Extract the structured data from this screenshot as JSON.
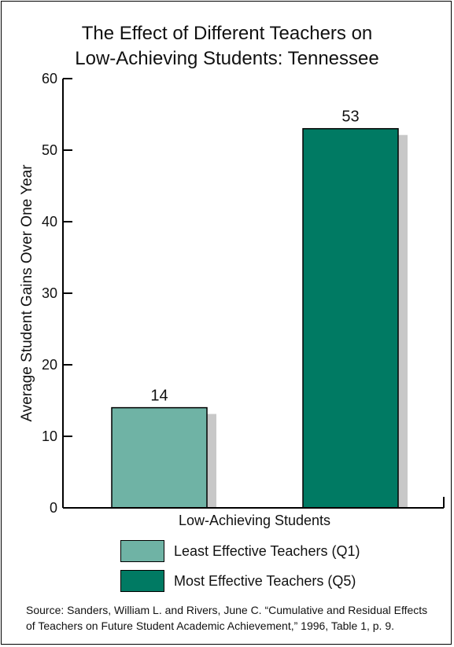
{
  "title_line1": "The Effect of Different Teachers on",
  "title_line2": "Low-Achieving Students: Tennessee",
  "colors": {
    "q1": "#6fb3a5",
    "q5": "#007a63",
    "shadow": "#c8c8c8",
    "axis": "#000000"
  },
  "legend": [
    {
      "label": "Least Effective Teachers (Q1)",
      "color": "#6fb3a5"
    },
    {
      "label": "Most Effective Teachers (Q5)",
      "color": "#007a63"
    }
  ],
  "source_line1": "Source: Sanders, William L. and Rivers, June C. “Cumulative and Residual Effects",
  "source_line2": "of Teachers on Future Student Academic Achievement,” 1996, Table 1, p. 9.",
  "chart_data": {
    "type": "bar",
    "title": "The Effect of Different Teachers on Low-Achieving Students: Tennessee",
    "categories": [
      "Low-Achieving Students"
    ],
    "series": [
      {
        "name": "Least Effective Teachers (Q1)",
        "values": [
          14
        ]
      },
      {
        "name": "Most Effective Teachers (Q5)",
        "values": [
          53
        ]
      }
    ],
    "data_labels": [
      "14",
      "53"
    ],
    "xlabel": "Low-Achieving Students",
    "ylabel": "Average Student Gains Over One Year",
    "ylim": [
      0,
      60
    ],
    "yticks": [
      0,
      10,
      20,
      30,
      40,
      50,
      60
    ],
    "grid": false,
    "legend_position": "bottom"
  }
}
